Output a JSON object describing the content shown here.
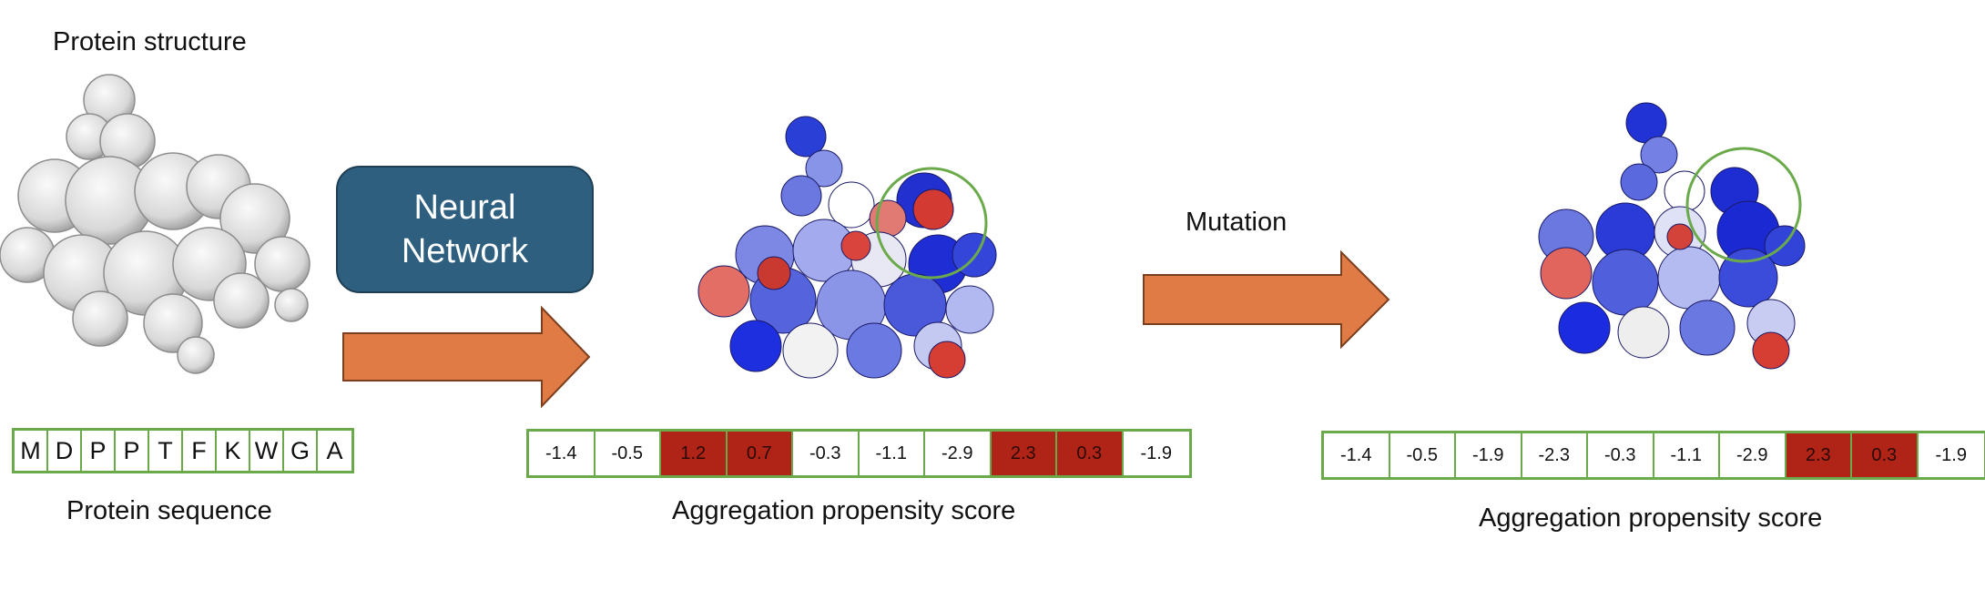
{
  "labels": {
    "protein_structure": "Protein structure",
    "protein_sequence": "Protein sequence",
    "neural_network_line1": "Neural",
    "neural_network_line2": "Network",
    "mutation": "Mutation",
    "aggregation_score_1": "Aggregation propensity score",
    "aggregation_score_2": "Aggregation propensity score"
  },
  "sequence": [
    "M",
    "D",
    "P",
    "P",
    "T",
    "F",
    "K",
    "W",
    "G",
    "A"
  ],
  "scores_before": [
    "-1.4",
    "-0.5",
    "1.2",
    "0.7",
    "-0.3",
    "-1.1",
    "-2.9",
    "2.3",
    "0.3",
    "-1.9"
  ],
  "scores_after": [
    "-1.4",
    "-0.5",
    "-1.9",
    "-2.3",
    "-0.3",
    "-1.1",
    "-2.9",
    "2.3",
    "0.3",
    "-1.9"
  ],
  "hot_threshold": 0,
  "colors": {
    "arrow_fill": "#e07b45",
    "arrow_stroke": "#7a3f1f",
    "box_fill": "#2e5f7f",
    "grid_border": "#6aaa4a",
    "hot_cell": "#b02418",
    "circle": "#6aaa4a"
  }
}
